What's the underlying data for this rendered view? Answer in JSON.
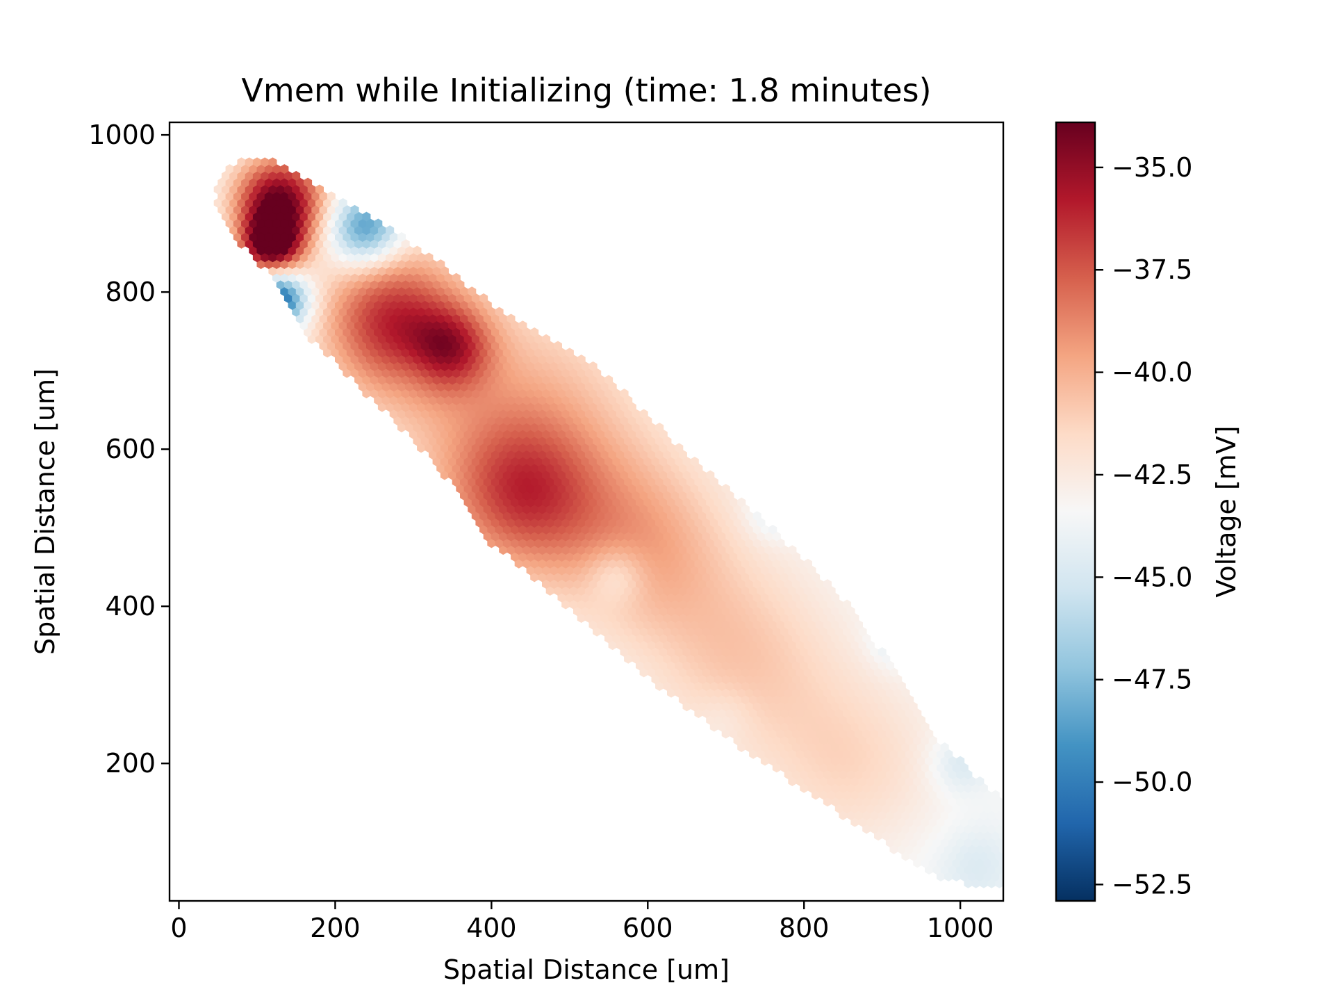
{
  "chart_data": {
    "type": "heatmap",
    "title": "Vmem while Initializing (time: 1.8 minutes)",
    "xlabel": "Spatial Distance [um]",
    "ylabel": "Spatial Distance [um]",
    "xlim": [
      -12,
      1055
    ],
    "ylim": [
      25,
      1016
    ],
    "x_ticks": [
      0,
      200,
      400,
      600,
      800,
      1000
    ],
    "y_ticks": [
      200,
      400,
      600,
      800,
      1000
    ],
    "x_tick_labels": [
      "0",
      "200",
      "400",
      "600",
      "800",
      "1000"
    ],
    "y_tick_labels": [
      "200",
      "400",
      "600",
      "800",
      "1000"
    ],
    "grid": false,
    "colormap": "RdBu_r",
    "colorbar": {
      "label": "Voltage [mV]",
      "min": -52.9,
      "max": -33.9,
      "ticks": [
        -35.0,
        -37.5,
        -40.0,
        -42.5,
        -45.0,
        -47.5,
        -50.0,
        -52.5
      ],
      "tick_labels": [
        "−35.0",
        "−37.5",
        "−40.0",
        "−42.5",
        "−45.0",
        "−47.5",
        "−50.0",
        "−52.5"
      ]
    },
    "cell_spacing_um": 10,
    "boundary_polygon_um": [
      [
        45,
        930
      ],
      [
        60,
        955
      ],
      [
        75,
        970
      ],
      [
        120,
        970
      ],
      [
        180,
        935
      ],
      [
        310,
        855
      ],
      [
        420,
        770
      ],
      [
        540,
        700
      ],
      [
        650,
        595
      ],
      [
        770,
        490
      ],
      [
        870,
        390
      ],
      [
        970,
        230
      ],
      [
        1055,
        155
      ],
      [
        1090,
        115
      ],
      [
        1090,
        65
      ],
      [
        1070,
        50
      ],
      [
        1025,
        40
      ],
      [
        960,
        60
      ],
      [
        810,
        160
      ],
      [
        690,
        240
      ],
      [
        600,
        310
      ],
      [
        520,
        380
      ],
      [
        400,
        480
      ],
      [
        330,
        580
      ],
      [
        230,
        680
      ],
      [
        150,
        760
      ],
      [
        110,
        830
      ],
      [
        60,
        880
      ]
    ],
    "vmem_regions_mV": [
      {
        "x": 128,
        "y": 915,
        "radius": 70,
        "peak": -33.9
      },
      {
        "x": 118,
        "y": 858,
        "radius": 45,
        "peak": -34.8
      },
      {
        "x": 238,
        "y": 880,
        "radius": 55,
        "peak": -49.8
      },
      {
        "x": 125,
        "y": 790,
        "radius": 45,
        "peak": -52.3
      },
      {
        "x": 272,
        "y": 765,
        "radius": 110,
        "peak": -36.9
      },
      {
        "x": 350,
        "y": 730,
        "radius": 60,
        "peak": -39.4
      },
      {
        "x": 430,
        "y": 630,
        "radius": 200,
        "peak": -39.9
      },
      {
        "x": 440,
        "y": 540,
        "radius": 110,
        "peak": -39.3
      },
      {
        "x": 590,
        "y": 480,
        "radius": 140,
        "peak": -40.2
      },
      {
        "x": 720,
        "y": 340,
        "radius": 150,
        "peak": -41.0
      },
      {
        "x": 860,
        "y": 200,
        "radius": 140,
        "peak": -41.5
      },
      {
        "x": 560,
        "y": 440,
        "radius": 45,
        "peak": -45.5
      },
      {
        "x": 300,
        "y": 700,
        "radius": 40,
        "peak": -44.0
      },
      {
        "x": 760,
        "y": 520,
        "radius": 40,
        "peak": -45.2
      },
      {
        "x": 920,
        "y": 360,
        "radius": 40,
        "peak": -45.4
      },
      {
        "x": 1000,
        "y": 200,
        "radius": 45,
        "peak": -45.2
      },
      {
        "x": 1020,
        "y": 70,
        "radius": 60,
        "peak": -44.8
      },
      {
        "x": 700,
        "y": 260,
        "radius": 40,
        "peak": -44.2
      },
      {
        "x": 485,
        "y": 860,
        "radius": 55,
        "peak": -44.5
      }
    ],
    "background_mV": -43.6
  }
}
